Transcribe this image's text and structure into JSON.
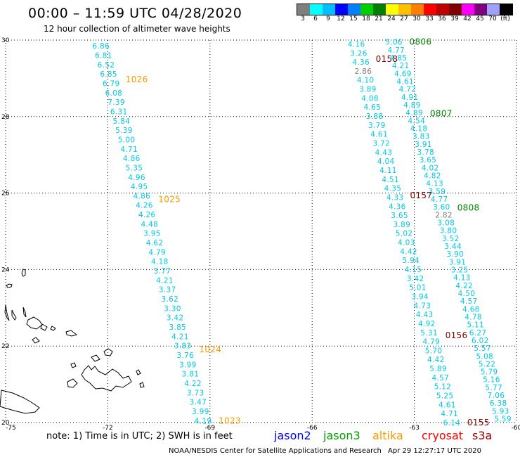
{
  "header": {
    "title": "00:00 – 11:59 UTC 04/28/2020",
    "subtitle": "12 hour collection of altimeter wave heights"
  },
  "colorbar": {
    "colors": [
      "#7f7f7f",
      "#00ffff",
      "#00bfff",
      "#0000ff",
      "#0080ff",
      "#00d000",
      "#008000",
      "#ffff00",
      "#ffc000",
      "#ff8000",
      "#ff0000",
      "#c00000",
      "#800000",
      "#ff00ff",
      "#800080",
      "#a0a0ff",
      "#000000"
    ],
    "labels": [
      "3",
      "6",
      "9",
      "12",
      "15",
      "18",
      "21",
      "24",
      "27",
      "30",
      "33",
      "36",
      "39",
      "42",
      "45",
      "70",
      "(ft)"
    ]
  },
  "axes": {
    "lon_ticks": [
      "-75",
      "-72",
      "-69",
      "-66",
      "-63",
      "-60"
    ],
    "lat_ticks": [
      "30",
      "28",
      "26",
      "24",
      "22",
      "20"
    ]
  },
  "chart_data": {
    "type": "scatter",
    "xlim": [
      -75,
      -60
    ],
    "ylim": [
      20,
      30
    ],
    "grid": true,
    "units": "ft",
    "colors": {
      "sat_altika": "#ff9900",
      "sat_cryosat": "#800000",
      "sat_jason3": "#008000",
      "swh_default": "#00c8e6",
      "swh_low": "#7f7f7f"
    },
    "tracks": [
      {
        "values": [
          "6.86",
          "6.81",
          "6.52",
          "6.85",
          "6.79",
          "6.08",
          "7.39",
          "6.31",
          "5.84",
          "5.39",
          "5.00",
          "4.71",
          "4.86",
          "5.35",
          "4.96",
          "4.95",
          "4.86",
          "4.26",
          "4.26",
          "4.48",
          "3.95",
          "4.62",
          "4.79",
          "4.18",
          "3.77",
          "4.21",
          "3.37",
          "3.62",
          "3.30",
          "3.42",
          "3.85",
          "4.21",
          "3.83",
          "3.76",
          "3.99",
          "3.81",
          "4.22",
          "3.73",
          "3.47",
          "3.99",
          "4.19"
        ],
        "lon_start": -72.2,
        "lat_start": 29.85,
        "lon_end": -69.2,
        "lat_end": 20.05,
        "markers": [
          {
            "label": "1026",
            "sat": "altika",
            "at": 0.09
          },
          {
            "label": "1025",
            "sat": "altika",
            "at": 0.41
          },
          {
            "label": "1024",
            "sat": "altika",
            "at": 0.81
          },
          {
            "label": "1023",
            "sat": "altika",
            "at": 1.0
          }
        ]
      },
      {
        "values": [
          "4.16",
          "3.26",
          "4.36",
          "2.86",
          "4.10",
          "3.89",
          "4.08",
          "4.65",
          "3.88",
          "3.79",
          "4.61",
          "3.72",
          "4.43",
          "4.04",
          "4.11",
          "4.51",
          "4.35",
          "4.33",
          "4.36",
          "3.65",
          "3.89",
          "5.02",
          "4.03",
          "4.42",
          "5.94",
          "4.15",
          "3.42",
          "5.01",
          "3.94",
          "4.73",
          "4.43",
          "4.92",
          "5.31",
          "4.79",
          "5.70",
          "4.42",
          "5.89",
          "4.57",
          "5.12",
          "5.25",
          "4.61",
          "4.71",
          "6.14"
        ],
        "lon_start": -64.7,
        "lat_start": 29.9,
        "lon_end": -61.9,
        "lat_end": 20.0,
        "markers": [
          {
            "label": "0158",
            "sat": "cryosat",
            "at": 0.04
          },
          {
            "label": "0157",
            "sat": "cryosat",
            "at": 0.4
          },
          {
            "label": "0156",
            "sat": "cryosat",
            "at": 0.77
          },
          {
            "label": "0155",
            "sat": "cryosat",
            "at": 1.0
          }
        ]
      },
      {
        "values": [
          "5.06",
          "4.77",
          "4.85",
          "4.21",
          "4.69",
          "4.61",
          "4.72",
          "4.91",
          "4.89",
          "4.89",
          "4.54",
          "4.18",
          "3.83",
          "3.91",
          "3.78",
          "3.65",
          "4.02",
          "4.82",
          "4.13",
          "3.59",
          "4.77",
          "3.60",
          "2.82",
          "3.08",
          "3.80",
          "3.52",
          "3.44",
          "3.90",
          "3.91",
          "3.25",
          "4.13",
          "4.22",
          "4.50",
          "4.57",
          "4.68",
          "4.78",
          "5.11",
          "6.27",
          "6.02",
          "5.57",
          "5.08",
          "5.22",
          "5.79",
          "5.16",
          "5.77",
          "7.06",
          "6.38",
          "5.93",
          "5.59"
        ],
        "lon_start": -63.6,
        "lat_start": 29.95,
        "lon_end": -60.4,
        "lat_end": 20.1,
        "markers": [
          {
            "label": "0806",
            "sat": "jason3",
            "at": 0.0
          },
          {
            "label": "0807",
            "sat": "jason3",
            "at": 0.19
          },
          {
            "label": "0808",
            "sat": "jason3",
            "at": 0.44
          }
        ]
      }
    ]
  },
  "footer": {
    "note": "note:  1) Time is in UTC;  2) SWH is in feet",
    "legend": [
      {
        "label": "jason2",
        "color": "#0000ff"
      },
      {
        "label": "jason3",
        "color": "#00a000"
      },
      {
        "label": "altika",
        "color": "#ff9900"
      },
      {
        "label": "cryosat",
        "color": "#ff0000"
      },
      {
        "label": "s3a",
        "color": "#a00000"
      }
    ],
    "credit": "NOAA/NESDIS Center for Satellite Applications and Research",
    "timestamp": "Apr 29 12:27:17 UTC 2020"
  }
}
